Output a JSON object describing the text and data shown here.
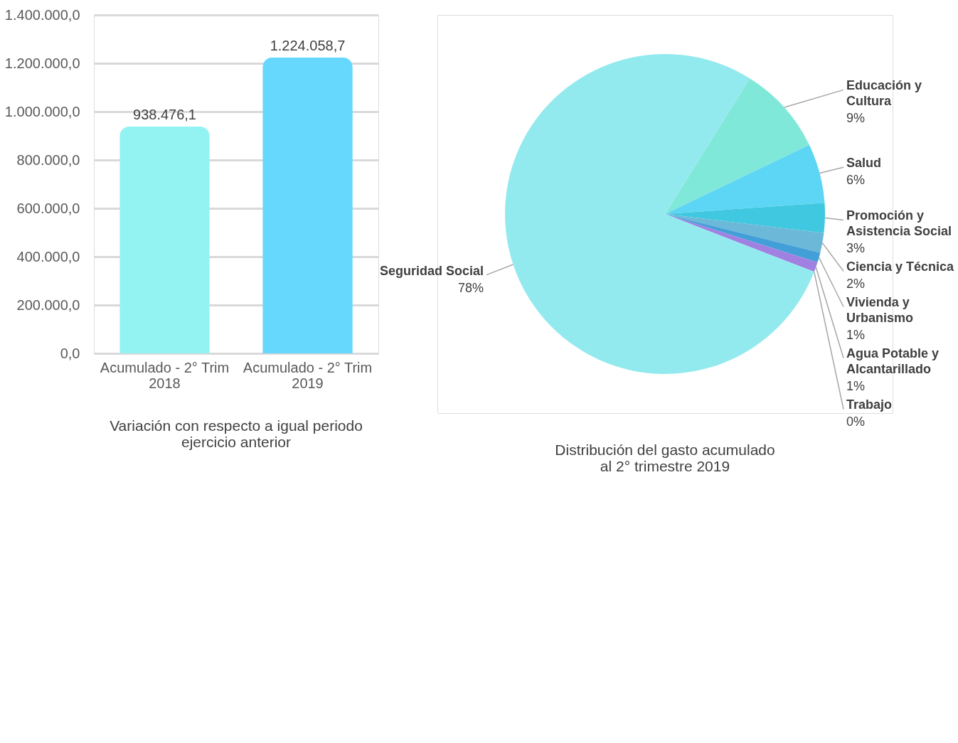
{
  "chart_data": [
    {
      "type": "bar",
      "title": "Variación con respecto a igual periodo ejercicio anterior",
      "categories": [
        "Acumulado - 2° Trim 2018",
        "Acumulado - 2° Trim 2019"
      ],
      "values": [
        938476.1,
        1224058.7
      ],
      "colors": [
        "#93f3f3",
        "#66d7fd"
      ],
      "value_labels": [
        "938.476,1",
        "1.224.058,7"
      ],
      "ylim": [
        0,
        1400000
      ],
      "yticks": [
        {
          "value": 0,
          "label": "0,0"
        },
        {
          "value": 200000,
          "label": "200.000,0"
        },
        {
          "value": 400000,
          "label": "400.000,0"
        },
        {
          "value": 600000,
          "label": "600.000,0"
        },
        {
          "value": 800000,
          "label": "800.000,0"
        },
        {
          "value": 1000000,
          "label": "1.000.000,0"
        },
        {
          "value": 1200000,
          "label": "1.200.000,0"
        },
        {
          "value": 1400000,
          "label": "1.400.000,0"
        }
      ],
      "grid": "y"
    },
    {
      "type": "pie",
      "title": "Distribución del gasto acumulado al 2° trimestre 2019",
      "categories": [
        "Educación y Cultura",
        "Salud",
        "Promoción y Asistencia Social",
        "Ciencia y Técnica",
        "Vivienda y Urbanismo",
        "Agua Potable y Alcantarillado",
        "Trabajo",
        "Seguridad Social"
      ],
      "values": [
        9,
        6,
        3,
        2,
        1,
        1,
        0,
        78
      ],
      "value_labels": [
        "9%",
        "6%",
        "3%",
        "2%",
        "1%",
        "1%",
        "0%",
        "78%"
      ],
      "colors": [
        "#80e8d8",
        "#5dd5f5",
        "#40c8e0",
        "#6bb8d8",
        "#429fd8",
        "#a080e0",
        "#9e7bbf",
        "#93eaee"
      ]
    }
  ]
}
